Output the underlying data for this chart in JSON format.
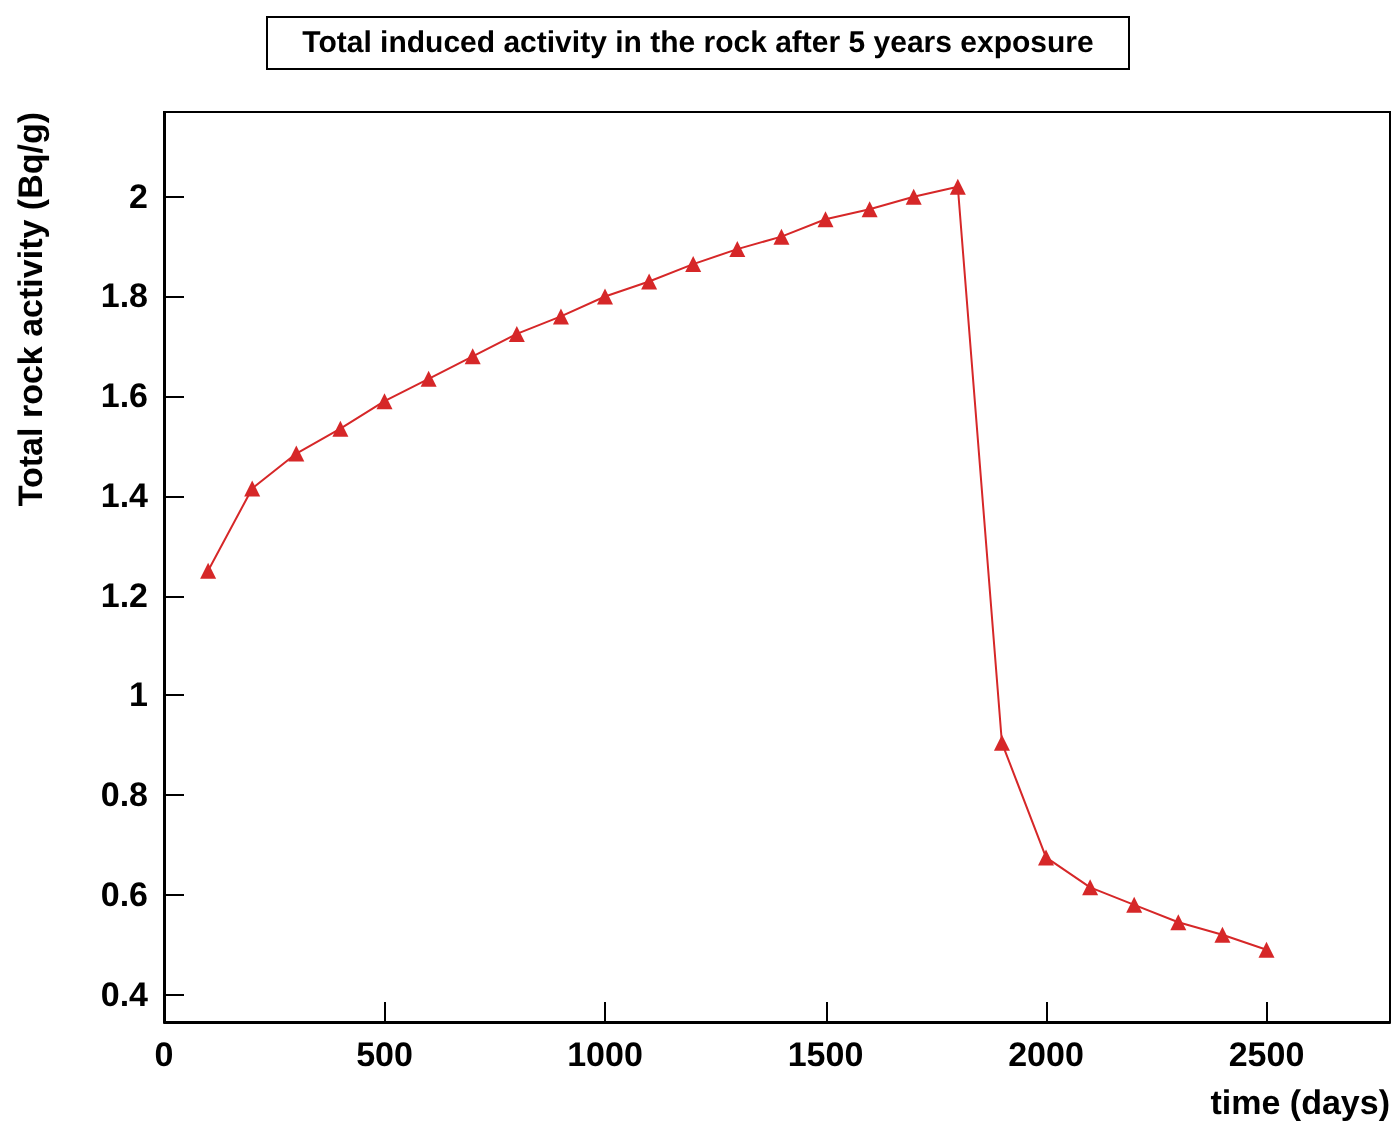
{
  "chart_data": {
    "type": "line",
    "title": "Total induced activity in the rock after 5 years exposure",
    "xlabel": "time (days)",
    "ylabel": "Total rock activity (Bq/g)",
    "x": [
      100,
      200,
      300,
      400,
      500,
      600,
      700,
      800,
      900,
      1000,
      1100,
      1200,
      1300,
      1400,
      1500,
      1600,
      1700,
      1800,
      1900,
      2000,
      2100,
      2200,
      2300,
      2400,
      2500
    ],
    "series": [
      {
        "color": "#d62728",
        "values": [
          1.25,
          1.415,
          1.485,
          1.535,
          1.59,
          1.635,
          1.68,
          1.725,
          1.76,
          1.8,
          1.83,
          1.865,
          1.895,
          1.92,
          1.955,
          1.975,
          2.0,
          2.02,
          0.905,
          0.675,
          0.615,
          0.58,
          0.545,
          0.52,
          0.49
        ]
      }
    ],
    "xlim": [
      0,
      2780
    ],
    "xticks": [
      0,
      500,
      1000,
      1500,
      2000,
      2500
    ],
    "ylim": [
      0.345,
      2.17
    ],
    "yticks": [
      0.4,
      0.6,
      0.8,
      1,
      1.2,
      1.4,
      1.6,
      1.8,
      2
    ],
    "marker": "triangle",
    "line_style": "solid",
    "grid": false
  }
}
